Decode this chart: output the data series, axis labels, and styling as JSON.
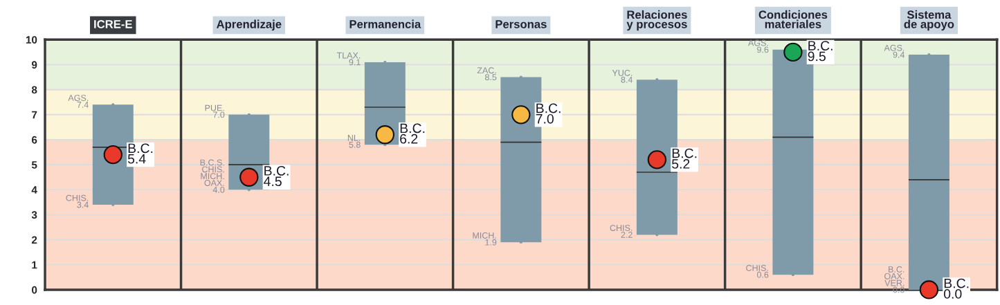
{
  "chart_data": {
    "type": "box",
    "categories": [
      "ICRE-E",
      "Aprendizaje",
      "Permanencia",
      "Personas",
      "Relaciones\ny procesos",
      "Condiciones\nmateriales",
      "Sistema\nde apoyo"
    ],
    "ylim": [
      0,
      10
    ],
    "yticks": [
      0,
      1,
      2,
      3,
      4,
      5,
      6,
      7,
      8,
      9,
      10
    ],
    "grid": "y",
    "marker": "circle",
    "color": "#7f9aa8",
    "boxes": [
      {
        "low": 3.4,
        "q1": 3.4,
        "median": 5.7,
        "q3": 7.4,
        "high": 7.4
      },
      {
        "low": 4.0,
        "q1": 4.0,
        "median": 5.0,
        "q3": 7.0,
        "high": 7.0
      },
      {
        "low": 5.8,
        "q1": 5.8,
        "median": 7.3,
        "q3": 9.1,
        "high": 9.1
      },
      {
        "low": 1.9,
        "q1": 1.9,
        "median": 5.9,
        "q3": 8.5,
        "high": 8.5
      },
      {
        "low": 2.2,
        "q1": 2.2,
        "median": 4.7,
        "q3": 8.4,
        "high": 8.4
      },
      {
        "low": 0.6,
        "q1": 0.6,
        "median": 6.1,
        "q3": 9.6,
        "high": 9.6
      },
      {
        "low": 0.0,
        "q1": 0.0,
        "median": 4.4,
        "q3": 9.4,
        "high": 9.4
      }
    ],
    "bands": [
      {
        "axis": "y",
        "from": 8,
        "to": 10,
        "color": "#e6f2dc"
      },
      {
        "axis": "y",
        "from": 6,
        "to": 8,
        "color": "#fdf5d8"
      },
      {
        "axis": "y",
        "from": 0,
        "to": 6,
        "color": "#fcd9c8"
      }
    ],
    "annotations": [
      {
        "text": "AGS.\n7.4",
        "x": "ICRE-E",
        "y": 7.4
      },
      {
        "text": "CHIS.\n3.4",
        "x": "ICRE-E",
        "y": 3.4
      },
      {
        "text": "PUE.\n7.0",
        "x": "Aprendizaje",
        "y": 7.0
      },
      {
        "text": "B.C.S.\nCHIS.\nMICH.\nOAX.\n4.0",
        "x": "Aprendizaje",
        "y": 4.0
      },
      {
        "text": "TLAX.\n9.1",
        "x": "Permanencia",
        "y": 9.1
      },
      {
        "text": "NL.\n5.8",
        "x": "Permanencia",
        "y": 5.8
      },
      {
        "text": "ZAC.\n8.5",
        "x": "Personas",
        "y": 8.5
      },
      {
        "text": "MICH.\n1.9",
        "x": "Personas",
        "y": 1.9
      },
      {
        "text": "YUC.\n8.4",
        "x": "Relaciones\ny procesos",
        "y": 8.4
      },
      {
        "text": "CHIS.\n2.2",
        "x": "Relaciones\ny procesos",
        "y": 2.2
      },
      {
        "text": "AGS.\n9.6",
        "x": "Condiciones\nmateriales",
        "y": 9.6
      },
      {
        "text": "CHIS.\n0.6",
        "x": "Condiciones\nmateriales",
        "y": 0.6
      },
      {
        "text": "AGS.\n9.4",
        "x": "Sistema\nde apoyo",
        "y": 9.4
      },
      {
        "text": "B.C.\nOAX.\nVER.\n0.0",
        "x": "Sistema\nde apoyo",
        "y": 0.0
      }
    ],
    "series": [
      {
        "type": "scatter",
        "x": [
          "ICRE-E",
          "Aprendizaje",
          "Permanencia",
          "Personas",
          "Relaciones\ny procesos",
          "Condiciones\nmateriales",
          "Sistema\nde apoyo"
        ],
        "values": [
          5.4,
          4.5,
          6.2,
          7.0,
          5.2,
          9.5,
          0.0
        ],
        "colors": [
          "#e8392a",
          "#e8392a",
          "#f7b944",
          "#f7b944",
          "#e8392a",
          "#1aa654",
          "#e8392a"
        ],
        "value_labels": [
          "B.C.\n5.4",
          "B.C.\n4.5",
          "B.C.\n6.2",
          "B.C.\n7.0",
          "B.C.\n5.2",
          "B.C.\n9.5",
          "B.C.\n0.0"
        ]
      }
    ]
  }
}
